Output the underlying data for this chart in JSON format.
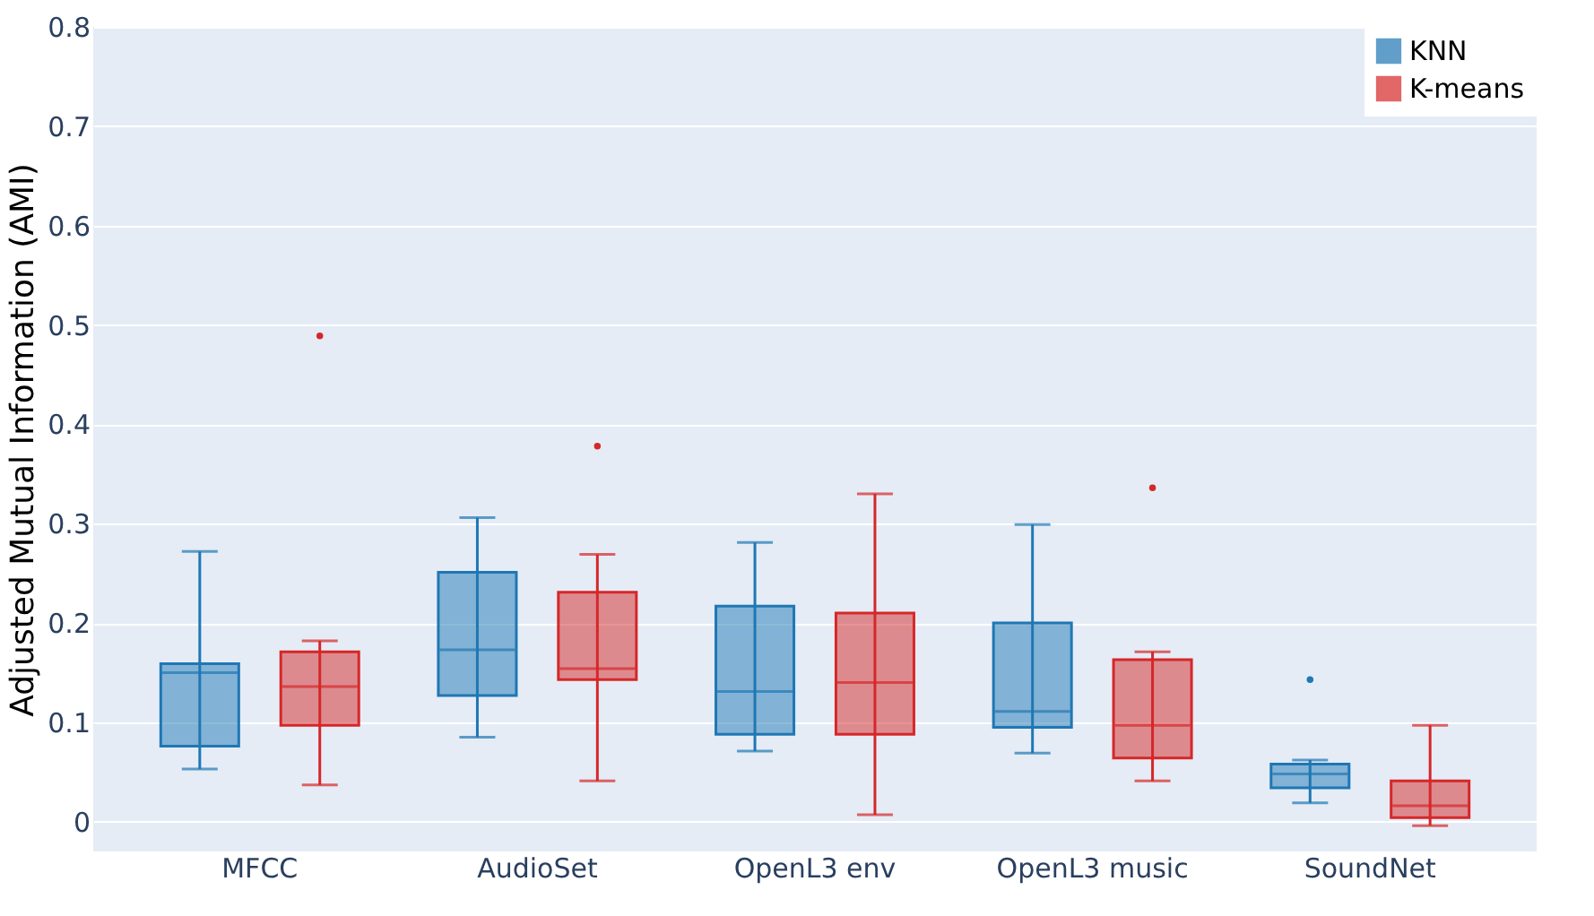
{
  "chart_data": {
    "type": "box",
    "ylabel": "Adjusted Mutual Information (AMI)",
    "categories": [
      "MFCC",
      "AudioSet",
      "OpenL3 env",
      "OpenL3 music",
      "SoundNet"
    ],
    "series": [
      {
        "name": "KNN",
        "color": "#1f77b4",
        "boxes": [
          {
            "low": 0.053,
            "q1": 0.076,
            "median": 0.15,
            "q3": 0.159,
            "high": 0.272
          },
          {
            "low": 0.085,
            "q1": 0.127,
            "median": 0.173,
            "q3": 0.251,
            "high": 0.306
          },
          {
            "low": 0.071,
            "q1": 0.088,
            "median": 0.131,
            "q3": 0.217,
            "high": 0.281
          },
          {
            "low": 0.069,
            "q1": 0.095,
            "median": 0.111,
            "q3": 0.2,
            "high": 0.299
          },
          {
            "low": 0.019,
            "q1": 0.034,
            "median": 0.048,
            "q3": 0.058,
            "high": 0.062,
            "outliers": [
              0.143
            ]
          }
        ]
      },
      {
        "name": "K-means",
        "color": "#d62728",
        "boxes": [
          {
            "low": 0.037,
            "q1": 0.097,
            "median": 0.136,
            "q3": 0.171,
            "high": 0.182,
            "outliers": [
              0.489
            ]
          },
          {
            "low": 0.041,
            "q1": 0.143,
            "median": 0.154,
            "q3": 0.231,
            "high": 0.269,
            "outliers": [
              0.378
            ]
          },
          {
            "low": 0.007,
            "q1": 0.088,
            "median": 0.14,
            "q3": 0.21,
            "high": 0.33
          },
          {
            "low": 0.041,
            "q1": 0.064,
            "median": 0.097,
            "q3": 0.163,
            "high": 0.171,
            "outliers": [
              0.336
            ]
          },
          {
            "low": -0.004,
            "q1": 0.004,
            "median": 0.016,
            "q3": 0.041,
            "high": 0.097
          }
        ]
      }
    ],
    "ylim": [
      -0.03,
      0.8
    ],
    "yticks": [
      0,
      0.1,
      0.2,
      0.3,
      0.4,
      0.5,
      0.6,
      0.7,
      0.8
    ],
    "grid": "y",
    "legend": "top right"
  }
}
